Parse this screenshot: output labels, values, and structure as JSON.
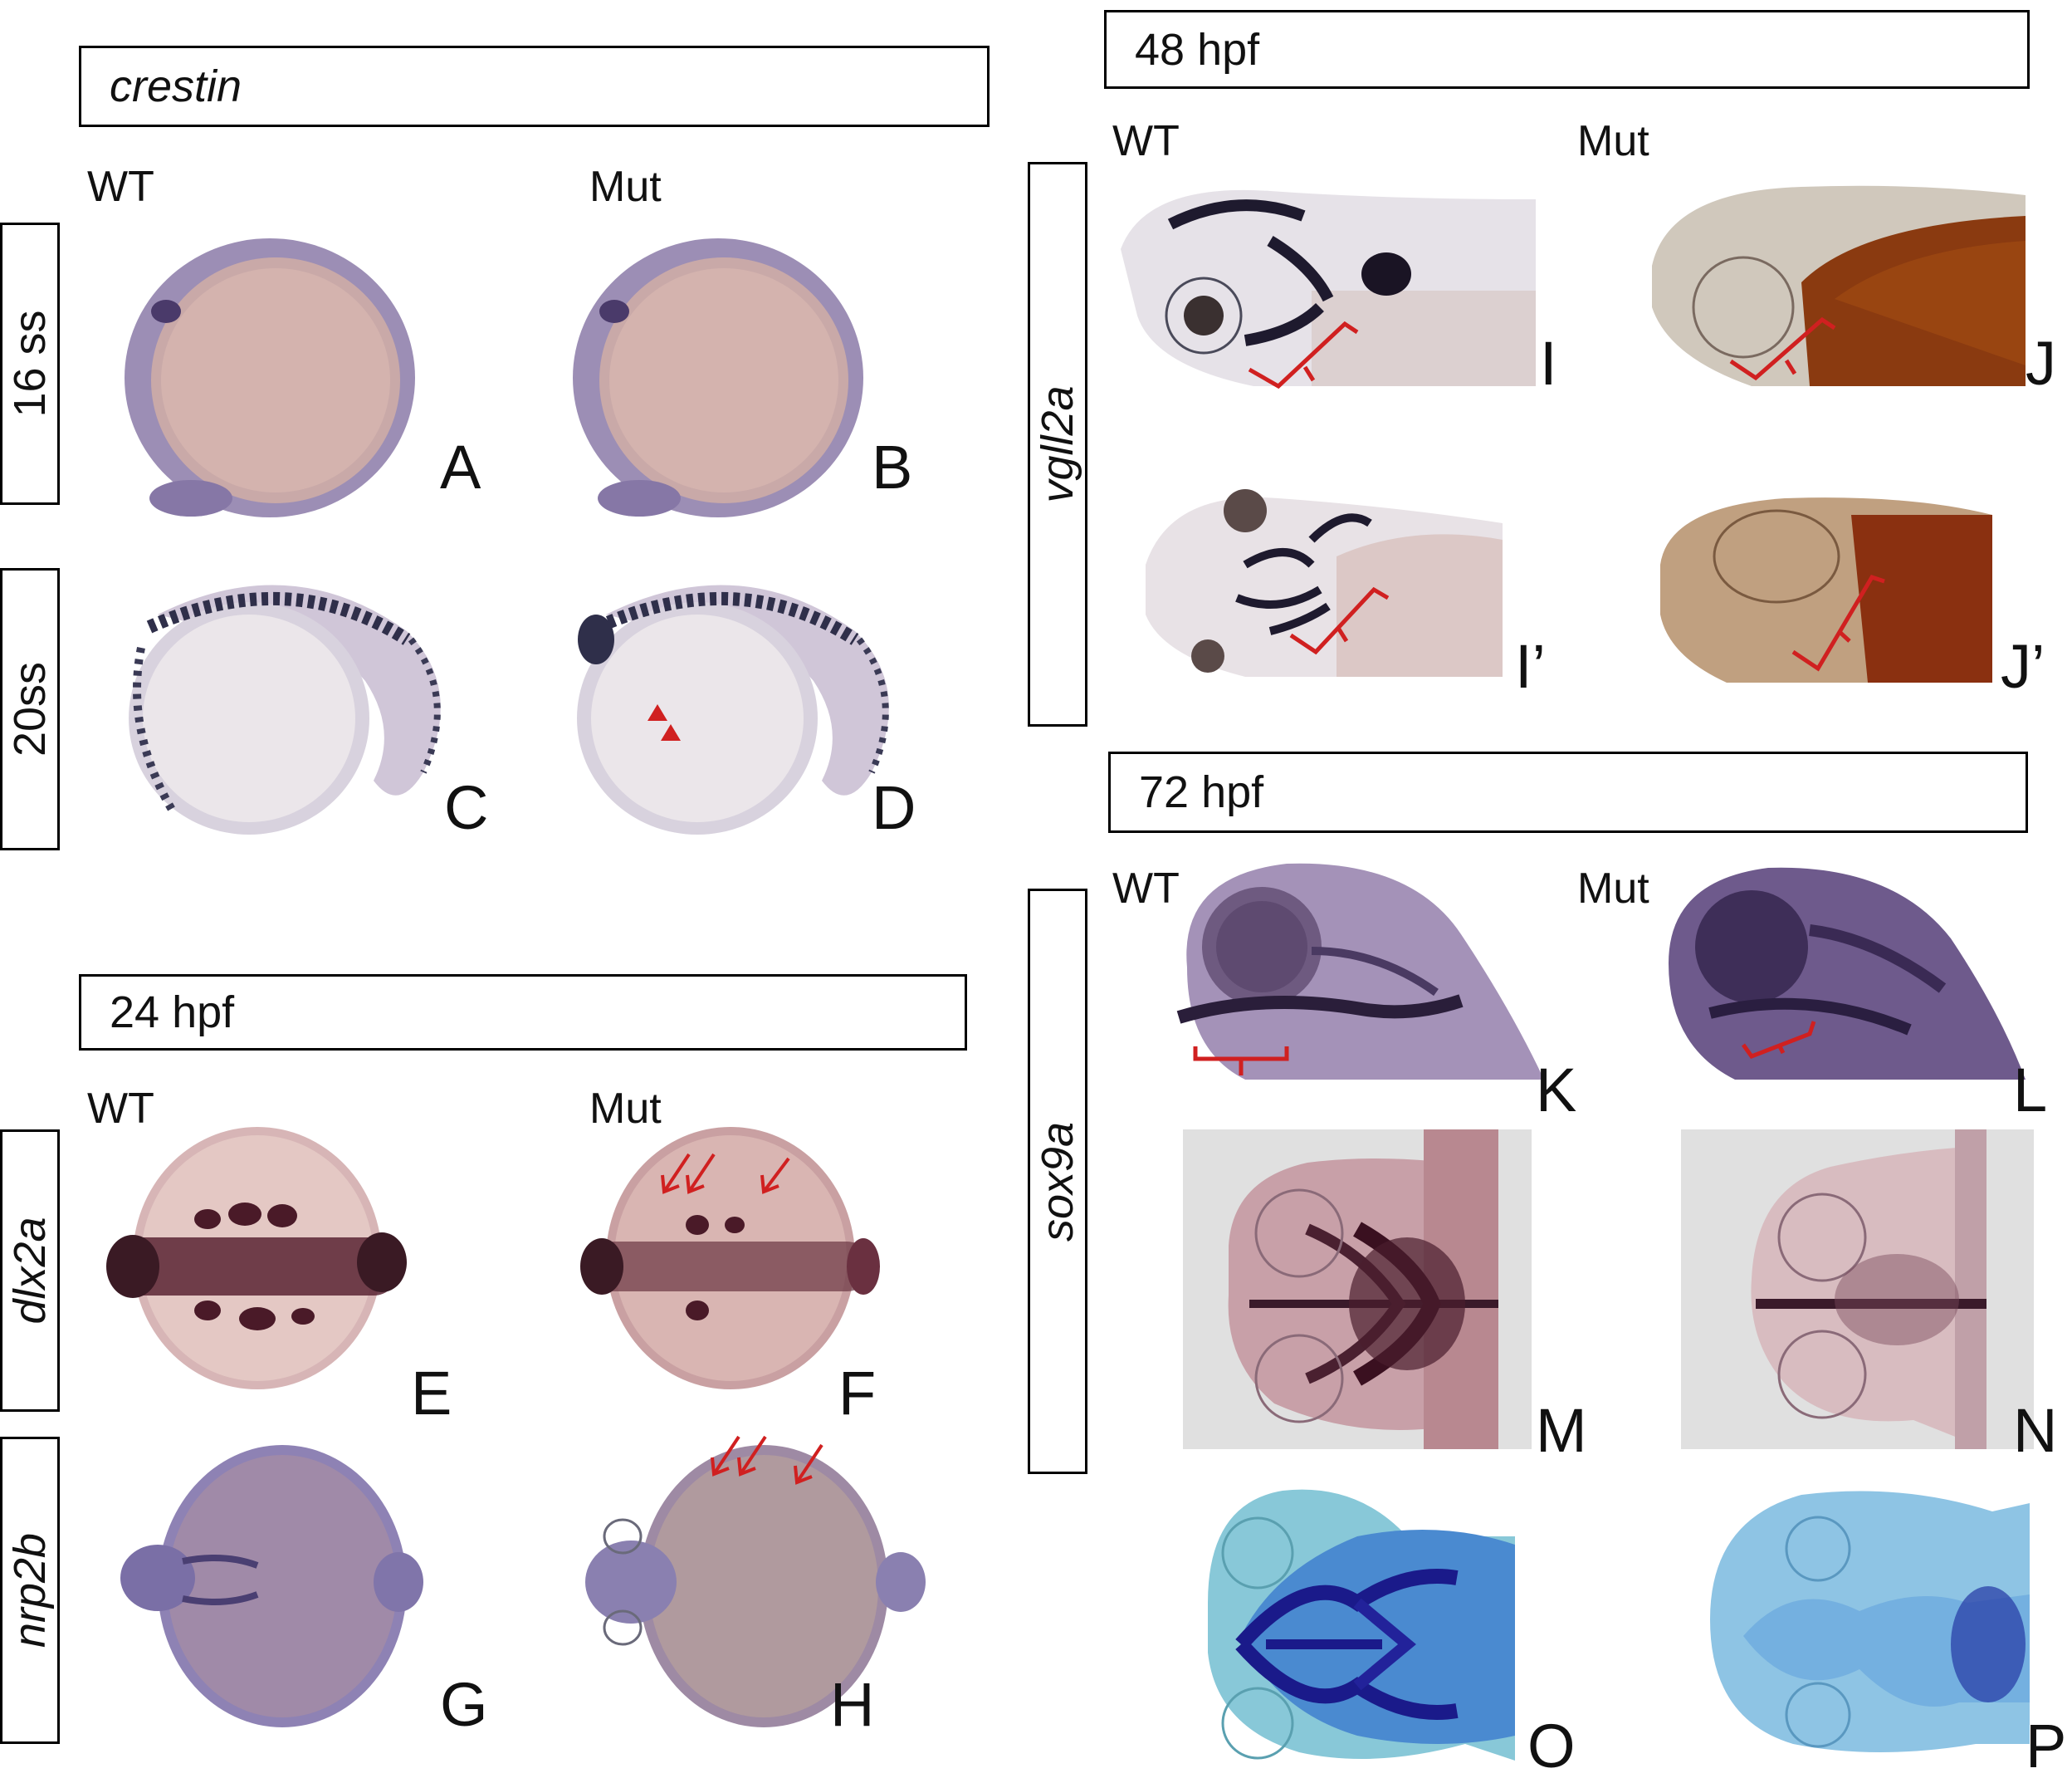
{
  "left": {
    "crestin_header": "crestin",
    "wt_top": "WT",
    "mut_top": "Mut",
    "stage_16ss": "16 ss",
    "stage_20ss": "20ss",
    "hpf24_header": "24 hpf",
    "wt_mid": "WT",
    "mut_mid": "Mut",
    "gene_dlx2a": "dlx2a",
    "gene_nrp2b": "nrp2b",
    "panels": [
      "A",
      "B",
      "C",
      "D",
      "E",
      "F",
      "G",
      "H"
    ]
  },
  "right": {
    "hpf48_header": "48 hpf",
    "wt_48": "WT",
    "mut_48": "Mut",
    "gene_vgll2a": "vgll2a",
    "hpf72_header": "72 hpf",
    "wt_72": "WT",
    "mut_72": "Mut",
    "gene_sox9a": "sox9a",
    "panels": [
      "I",
      "J",
      "I’",
      "J’",
      "K",
      "L",
      "M",
      "N",
      "O",
      "P"
    ]
  },
  "colors": {
    "stain_purple": "#6e5a99",
    "stain_dark": "#3a2a4a",
    "yolk_pink": "#d9b8b0",
    "annotation_red": "#d02020",
    "alcian_blue": "#6aa8d8",
    "alcian_dark": "#1a1a8a",
    "mut_brown": "#8a3a10",
    "panel_gray": "#e0e0e0"
  }
}
